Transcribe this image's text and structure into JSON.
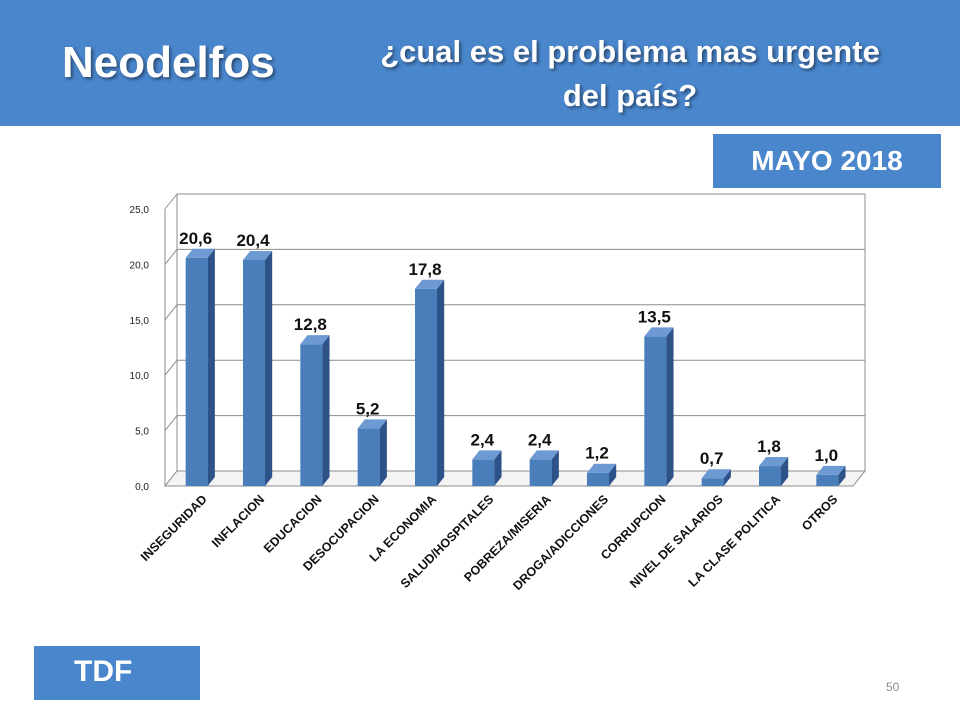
{
  "header": {
    "brand": "Neodelfos",
    "question_line1": "¿cual es el problema mas urgente",
    "question_line2": "del país?"
  },
  "date_badge": "MAYO 2018",
  "footer_badge": "TDF",
  "page_number": "50",
  "colors": {
    "header_bg": "#4a86cc",
    "bar_front": "#4a7ebb",
    "bar_side": "#2c5288",
    "bar_top": "#6d9ad2"
  },
  "chart_data": {
    "type": "bar",
    "categories": [
      "INSEGURIDAD",
      "INFLACION",
      "EDUCACION",
      "DESOCUPACION",
      "LA ECONOMIA",
      "SALUD/HOSPITALES",
      "POBREZA/MISERIA",
      "DROGA/ADICCIONES",
      "CORRUPCION",
      "NIVEL DE SALARIOS",
      "LA CLASE POLITICA",
      "OTROS"
    ],
    "values": [
      20.6,
      20.4,
      12.8,
      5.2,
      17.8,
      2.4,
      2.4,
      1.2,
      13.5,
      0.7,
      1.8,
      1.0
    ],
    "value_labels": [
      "20,6",
      "20,4",
      "12,8",
      "5,2",
      "17,8",
      "2,4",
      "2,4",
      "1,2",
      "13,5",
      "0,7",
      "1,8",
      "1,0"
    ],
    "y_ticks": [
      "0,0",
      "5,0",
      "10,0",
      "15,0",
      "20,0",
      "25,0"
    ],
    "ylim": [
      0,
      25
    ],
    "grid": true,
    "legend": "none",
    "title": "",
    "xlabel": "",
    "ylabel": ""
  }
}
